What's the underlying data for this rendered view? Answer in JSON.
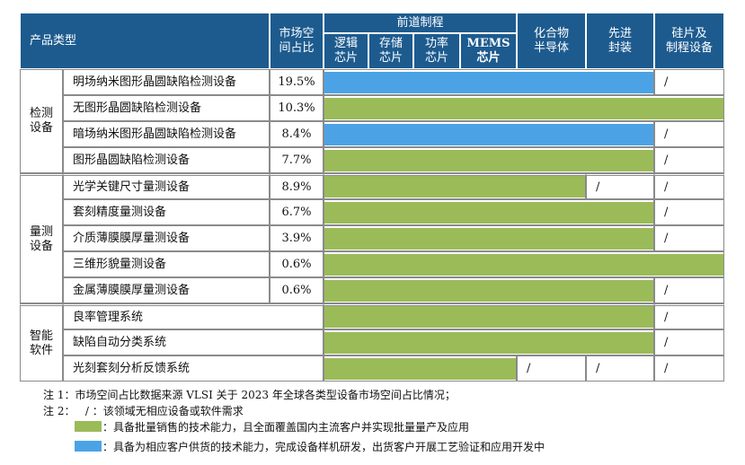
{
  "header": {
    "product_type": "产品类型",
    "market_share": "市场空\n间占比",
    "front_end": "前道制程",
    "columns": [
      "逻辑\n芯片",
      "存储\n芯片",
      "功率\n芯片",
      "MEMS\n芯片",
      "化合物\n半导体",
      "先进\n封装",
      "硅片及\n制程设备"
    ]
  },
  "groups": [
    {
      "label": "检测\n设备",
      "rows": [
        {
          "item": "明场纳米图形晶圆缺陷检测设备",
          "share": "19.5%",
          "cells": [
            "#4ba3e6",
            "#4ba3e6",
            "#4ba3e6",
            "#4ba3e6",
            "#4ba3e6",
            "#4ba3e6",
            "/"
          ]
        },
        {
          "item": "无图形晶圆缺陷检测设备",
          "share": "10.3%",
          "cells": [
            "#9bbb59",
            "#9bbb59",
            "#9bbb59",
            "#9bbb59",
            "#9bbb59",
            "#9bbb59",
            "#9bbb59"
          ]
        },
        {
          "item": "暗场纳米图形晶圆缺陷检测设备",
          "share": "8.4%",
          "cells": [
            "#4ba3e6",
            "#4ba3e6",
            "#4ba3e6",
            "#4ba3e6",
            "#4ba3e6",
            "#4ba3e6",
            "/"
          ]
        },
        {
          "item": "图形晶圆缺陷检测设备",
          "share": "7.7%",
          "cells": [
            "#9bbb59",
            "#9bbb59",
            "#9bbb59",
            "#9bbb59",
            "#9bbb59",
            "#9bbb59",
            "/"
          ]
        }
      ]
    },
    {
      "label": "量测\n设备",
      "rows": [
        {
          "item": "光学关键尺寸量测设备",
          "share": "8.9%",
          "cells": [
            "#9bbb59",
            "#9bbb59",
            "#9bbb59",
            "#9bbb59",
            "#9bbb59",
            "/",
            "/"
          ]
        },
        {
          "item": "套刻精度量测设备",
          "share": "6.7%",
          "cells": [
            "#9bbb59",
            "#9bbb59",
            "#9bbb59",
            "#9bbb59",
            "#9bbb59",
            "#9bbb59",
            "/"
          ]
        },
        {
          "item": "介质薄膜膜厚量测设备",
          "share": "3.9%",
          "cells": [
            "#9bbb59",
            "#9bbb59",
            "#9bbb59",
            "#9bbb59",
            "#9bbb59",
            "#9bbb59",
            "/"
          ]
        },
        {
          "item": "三维形貌量测设备",
          "share": "0.6%",
          "cells": [
            "#9bbb59",
            "#9bbb59",
            "#9bbb59",
            "#9bbb59",
            "#9bbb59",
            "#9bbb59",
            "#9bbb59"
          ]
        },
        {
          "item": "金属薄膜膜厚量测设备",
          "share": "0.6%",
          "cells": [
            "#9bbb59",
            "#9bbb59",
            "#9bbb59",
            "#9bbb59",
            "#9bbb59",
            "#9bbb59",
            "/"
          ]
        }
      ]
    },
    {
      "label": "智能\n软件",
      "rows": [
        {
          "item": "良率管理系统",
          "cells": [
            "#9bbb59",
            "#9bbb59",
            "#9bbb59",
            "#9bbb59",
            "#9bbb59",
            "#9bbb59",
            "/"
          ]
        },
        {
          "item": "缺陷自动分类系统",
          "cells": [
            "#9bbb59",
            "#9bbb59",
            "#9bbb59",
            "#9bbb59",
            "#9bbb59",
            "#9bbb59",
            "/"
          ]
        },
        {
          "item": "光刻套刻分析反馈系统",
          "cells": [
            "#9bbb59",
            "#9bbb59",
            "#9bbb59",
            "#9bbb59",
            "/",
            "/",
            "/"
          ]
        }
      ]
    }
  ],
  "notes": [
    "注 1：市场空间占比数据来源 VLSI 关于 2023 年全球各类型设备市场空间占比情况；",
    "注 2：   / ：该领域无相应设备或软件需求"
  ],
  "legend": [
    {
      "color": "#9bbb59",
      "text": "：具备批量销售的技术能力，且全面覆盖国内主流客户并实现批量量产及应用"
    },
    {
      "color": "#4ba3e6",
      "text": "：具备为相应客户供货的技术能力，完成设备样机研发，出货客户开展工艺验证和应用开发中"
    }
  ]
}
